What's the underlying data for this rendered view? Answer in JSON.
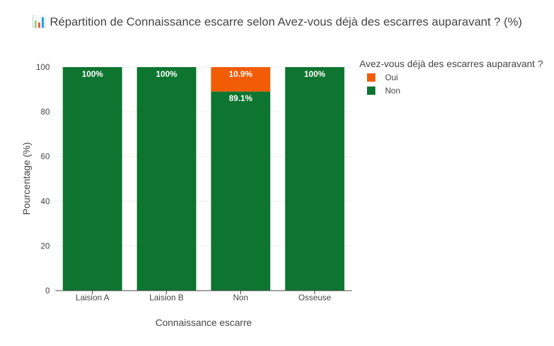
{
  "chart_data": {
    "type": "bar",
    "stacked": true,
    "title": "📊 Répartition de Connaissance escarre selon Avez-vous déjà des escarres auparavant ? (%)",
    "xlabel": "Connaissance escarre",
    "ylabel": "Pourcentage (%)",
    "ylim": [
      0,
      100
    ],
    "yticks": [
      0,
      20,
      40,
      60,
      80,
      100
    ],
    "grid": true,
    "legend_title": "Avez-vous déjà des escarres auparavant ?",
    "legend_position": "top-right outside",
    "categories": [
      "Laision A",
      "Laision B",
      "Non",
      "Osseuse"
    ],
    "series": [
      {
        "name": "Non",
        "color": "#0d7530",
        "values": [
          100,
          100,
          89.1,
          100
        ],
        "labels": [
          "100%",
          "100%",
          "89.1%",
          "100%"
        ]
      },
      {
        "name": "Oui",
        "color": "#f25c05",
        "values": [
          0,
          0,
          10.9,
          0
        ],
        "labels": [
          "",
          "",
          "10.9%",
          ""
        ]
      }
    ],
    "legend_order": [
      "Oui",
      "Non"
    ]
  }
}
